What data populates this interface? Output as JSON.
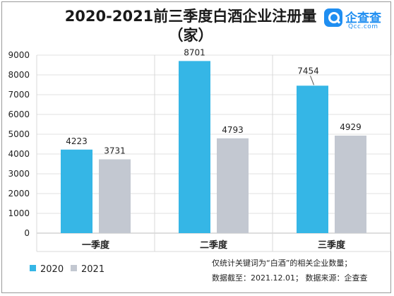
{
  "title_line1": "2020-2021前三季度白酒企业注册量",
  "title_line2": "（家）",
  "logo": {
    "icon": "magnifier-icon",
    "name": "企查查",
    "sub": "Qcc.com",
    "color": "#1f8ef1"
  },
  "chart_data": {
    "type": "bar",
    "categories": [
      "一季度",
      "二季度",
      "三季度"
    ],
    "series": [
      {
        "name": "2020",
        "values": [
          4223,
          8701,
          7454
        ],
        "color": "#35b6e6"
      },
      {
        "name": "2021",
        "values": [
          3731,
          4793,
          4929
        ],
        "color": "#c3c8d1"
      }
    ],
    "ylim": [
      0,
      9000
    ],
    "yticks": [
      "0",
      "1000",
      "2000",
      "3000",
      "4000",
      "5000",
      "6000",
      "7000",
      "8000",
      "9000"
    ],
    "grid": "horizontal",
    "legend": "bottom-left"
  },
  "footnote": {
    "line1": "仅统计关键词为“白酒”的相关企业数量；",
    "line2": "数据截至：2021.12.01；  数据来源：企查查"
  }
}
